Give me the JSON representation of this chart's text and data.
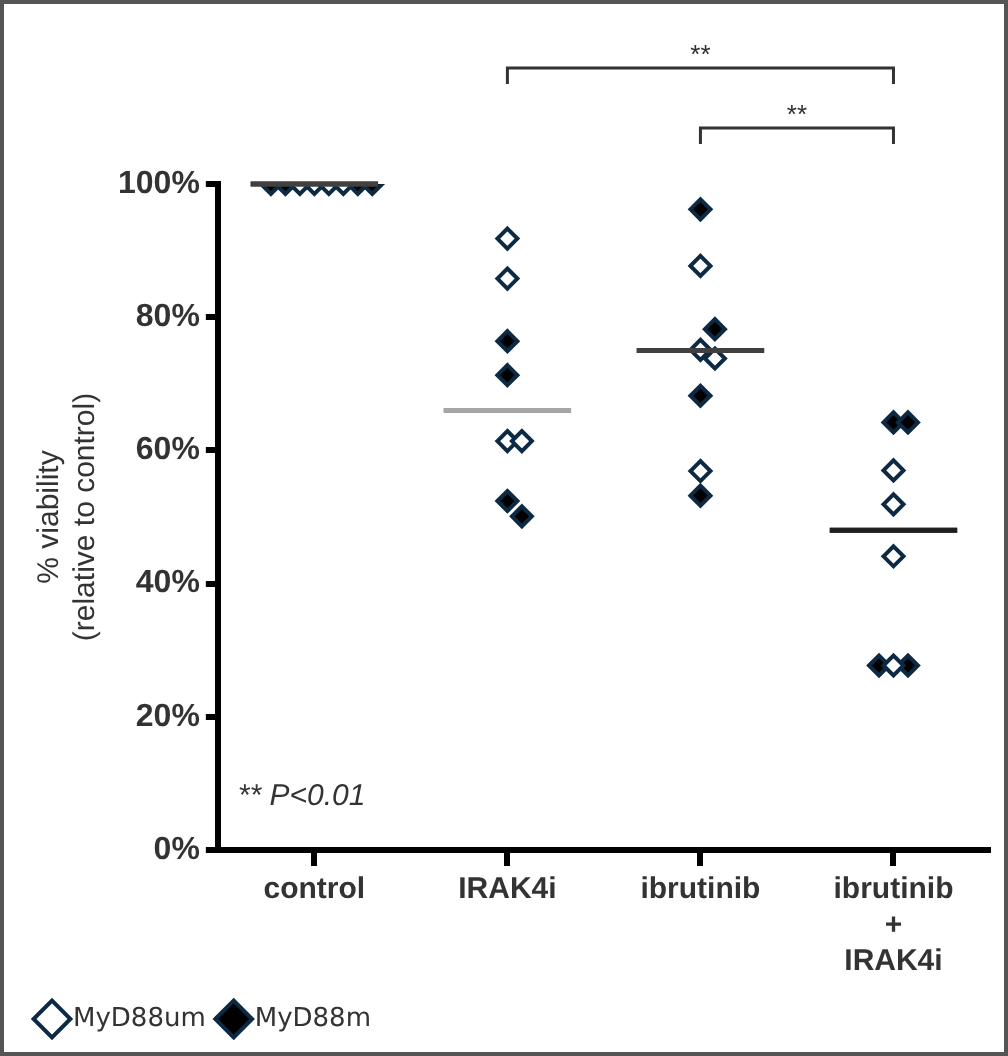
{
  "chart_data": {
    "type": "scatter",
    "categories": [
      "control",
      "IRAK4i",
      "ibrutinib",
      "ibrutinib\n+\nIRAK4i"
    ],
    "ylabel": "% viability\n(relative to control)",
    "ylim": [
      0,
      100
    ],
    "yticks": [
      {
        "value": 0,
        "label": "0%"
      },
      {
        "value": 20,
        "label": "20%"
      },
      {
        "value": 40,
        "label": "40%"
      },
      {
        "value": 60,
        "label": "60%"
      },
      {
        "value": 80,
        "label": "80%"
      },
      {
        "value": 100,
        "label": "100%"
      }
    ],
    "grid": false,
    "legend": "bottom left",
    "annotations": [
      "**",
      "**",
      "** P<0.01"
    ],
    "series": [
      {
        "name": "MyD88um",
        "color": "#ffffff",
        "marker": "diamond",
        "x": [
          "control",
          "control",
          "control",
          "control",
          "IRAK4i",
          "IRAK4i",
          "IRAK4i",
          "IRAK4i",
          "ibrutinib",
          "ibrutinib",
          "ibrutinib",
          "ibrutinib",
          "ibrutinib\n+\nIRAK4i",
          "ibrutinib\n+\nIRAK4i",
          "ibrutinib\n+\nIRAK4i",
          "ibrutinib\n+\nIRAK4i"
        ],
        "values": [
          100,
          100,
          100,
          100,
          91.8,
          85.8,
          61.4,
          61.4,
          87.7,
          75.1,
          73.8,
          56.9,
          57,
          51.9,
          44.1,
          27.7
        ]
      },
      {
        "name": "MyD88m",
        "color": "#000000",
        "marker": "diamond",
        "x": [
          "control",
          "control",
          "control",
          "control",
          "IRAK4i",
          "IRAK4i",
          "IRAK4i",
          "IRAK4i",
          "ibrutinib",
          "ibrutinib",
          "ibrutinib",
          "ibrutinib",
          "ibrutinib\n+\nIRAK4i",
          "ibrutinib\n+\nIRAK4i",
          "ibrutinib\n+\nIRAK4i",
          "ibrutinib\n+\nIRAK4i"
        ],
        "values": [
          100,
          100,
          100,
          100,
          76.4,
          71.3,
          52.4,
          50.1,
          96.2,
          78.2,
          68.2,
          53.2,
          64.2,
          64.2,
          27.7,
          27.7
        ]
      },
      {
        "type": "box",
        "colors": [
          "#404040",
          "#a6a6a6",
          "#404040",
          "#202020"
        ],
        "boxes": [
          {
            "low": 100,
            "q1": 100,
            "median": 100,
            "q3": 100,
            "high": 100
          },
          {
            "low": 66,
            "q1": 66,
            "median": 66,
            "q3": 66,
            "high": 66
          },
          {
            "low": 75,
            "q1": 75,
            "median": 75,
            "q3": 75,
            "high": 75
          },
          {
            "low": 48,
            "q1": 48,
            "median": 48,
            "q3": 48,
            "high": 48
          }
        ]
      }
    ]
  }
}
